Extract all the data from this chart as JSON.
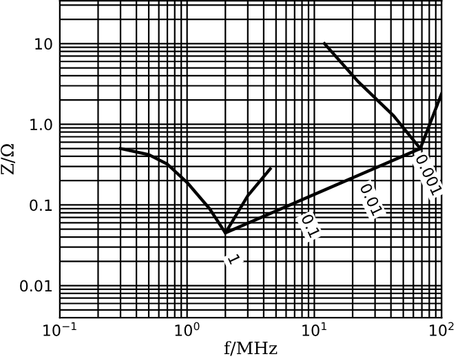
{
  "chart_data": {
    "type": "line",
    "xlabel": "f/MHz",
    "ylabel": "Z/Ω",
    "log": "xy",
    "xlim": [
      0.1,
      100
    ],
    "ylim": [
      0.004,
      34
    ],
    "xticks": [
      {
        "value": 0.1,
        "label": "10$^{−1}$"
      },
      {
        "value": 1,
        "label": "10$^{0}$"
      },
      {
        "value": 10,
        "label": "10$^{1}$"
      },
      {
        "value": 100,
        "label": "10$^{2}$"
      }
    ],
    "yticks": [
      0.01,
      0.1,
      {
        "value": 1,
        "label": "1.0"
      },
      10
    ],
    "grid": true,
    "marker": "none",
    "line_style": "solid",
    "series": [
      {
        "color": "#000000",
        "x": [
          0.3,
          0.5,
          0.7,
          1,
          1.5,
          2,
          3,
          4.5
        ],
        "values": [
          0.5,
          0.42,
          0.32,
          0.19,
          0.09,
          0.045,
          0.13,
          0.28
        ]
      },
      {
        "color": "#000000",
        "x": [
          2,
          68,
          100
        ],
        "values": [
          0.045,
          0.5,
          2.4
        ]
      },
      {
        "color": "#000000",
        "x": [
          12,
          22,
          42,
          68
        ],
        "values": [
          10,
          3.4,
          1.27,
          0.5
        ]
      }
    ],
    "annotations": [
      {
        "text": "1",
        "x": 2,
        "y": 0.045
      },
      {
        "text": "0.1",
        "x": 8,
        "y": 0.116
      },
      {
        "text": "0.01",
        "x": 24,
        "y": 0.246
      },
      {
        "text": "0.001",
        "x": 68,
        "y": 0.5
      }
    ]
  }
}
